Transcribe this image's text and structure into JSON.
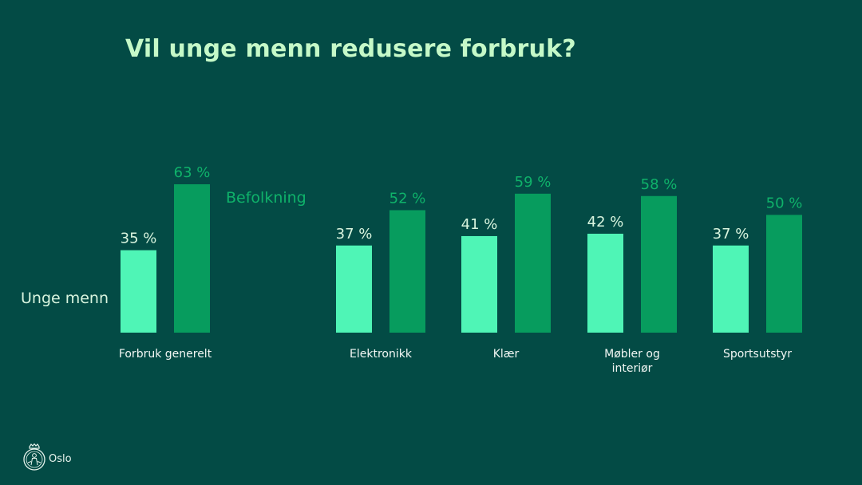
{
  "title": "Vil unge menn redusere forbruk?",
  "colors": {
    "background": "#034b45",
    "unge_menn": "#4ff5b6",
    "befolkning": "#079c5e",
    "label_light": "#d9f5df",
    "label_dark": "#0fb26a",
    "category_text": "#f2f7f4"
  },
  "logo": {
    "text": "Oslo",
    "icon": "oslo-coat-of-arms-icon"
  },
  "chart_data": {
    "type": "bar",
    "title": "Vil unge menn redusere forbruk?",
    "categories": [
      "Forbruk generelt",
      "Elektronikk",
      "Klær",
      "Møbler og interiør",
      "Sportsutstyr"
    ],
    "series": [
      {
        "name": "Unge menn",
        "values": [
          35,
          37,
          41,
          42,
          37
        ]
      },
      {
        "name": "Befolkning",
        "values": [
          63,
          52,
          59,
          58,
          50
        ]
      }
    ],
    "value_labels": [
      [
        "35 %",
        "37 %",
        "41 %",
        "42 %",
        "37 %"
      ],
      [
        "63 %",
        "52 %",
        "59 %",
        "58 %",
        "50 %"
      ]
    ],
    "ylim": [
      0,
      63
    ],
    "grid": false,
    "legend": "direct labels beside first group",
    "xlabel": "",
    "ylabel": ""
  }
}
